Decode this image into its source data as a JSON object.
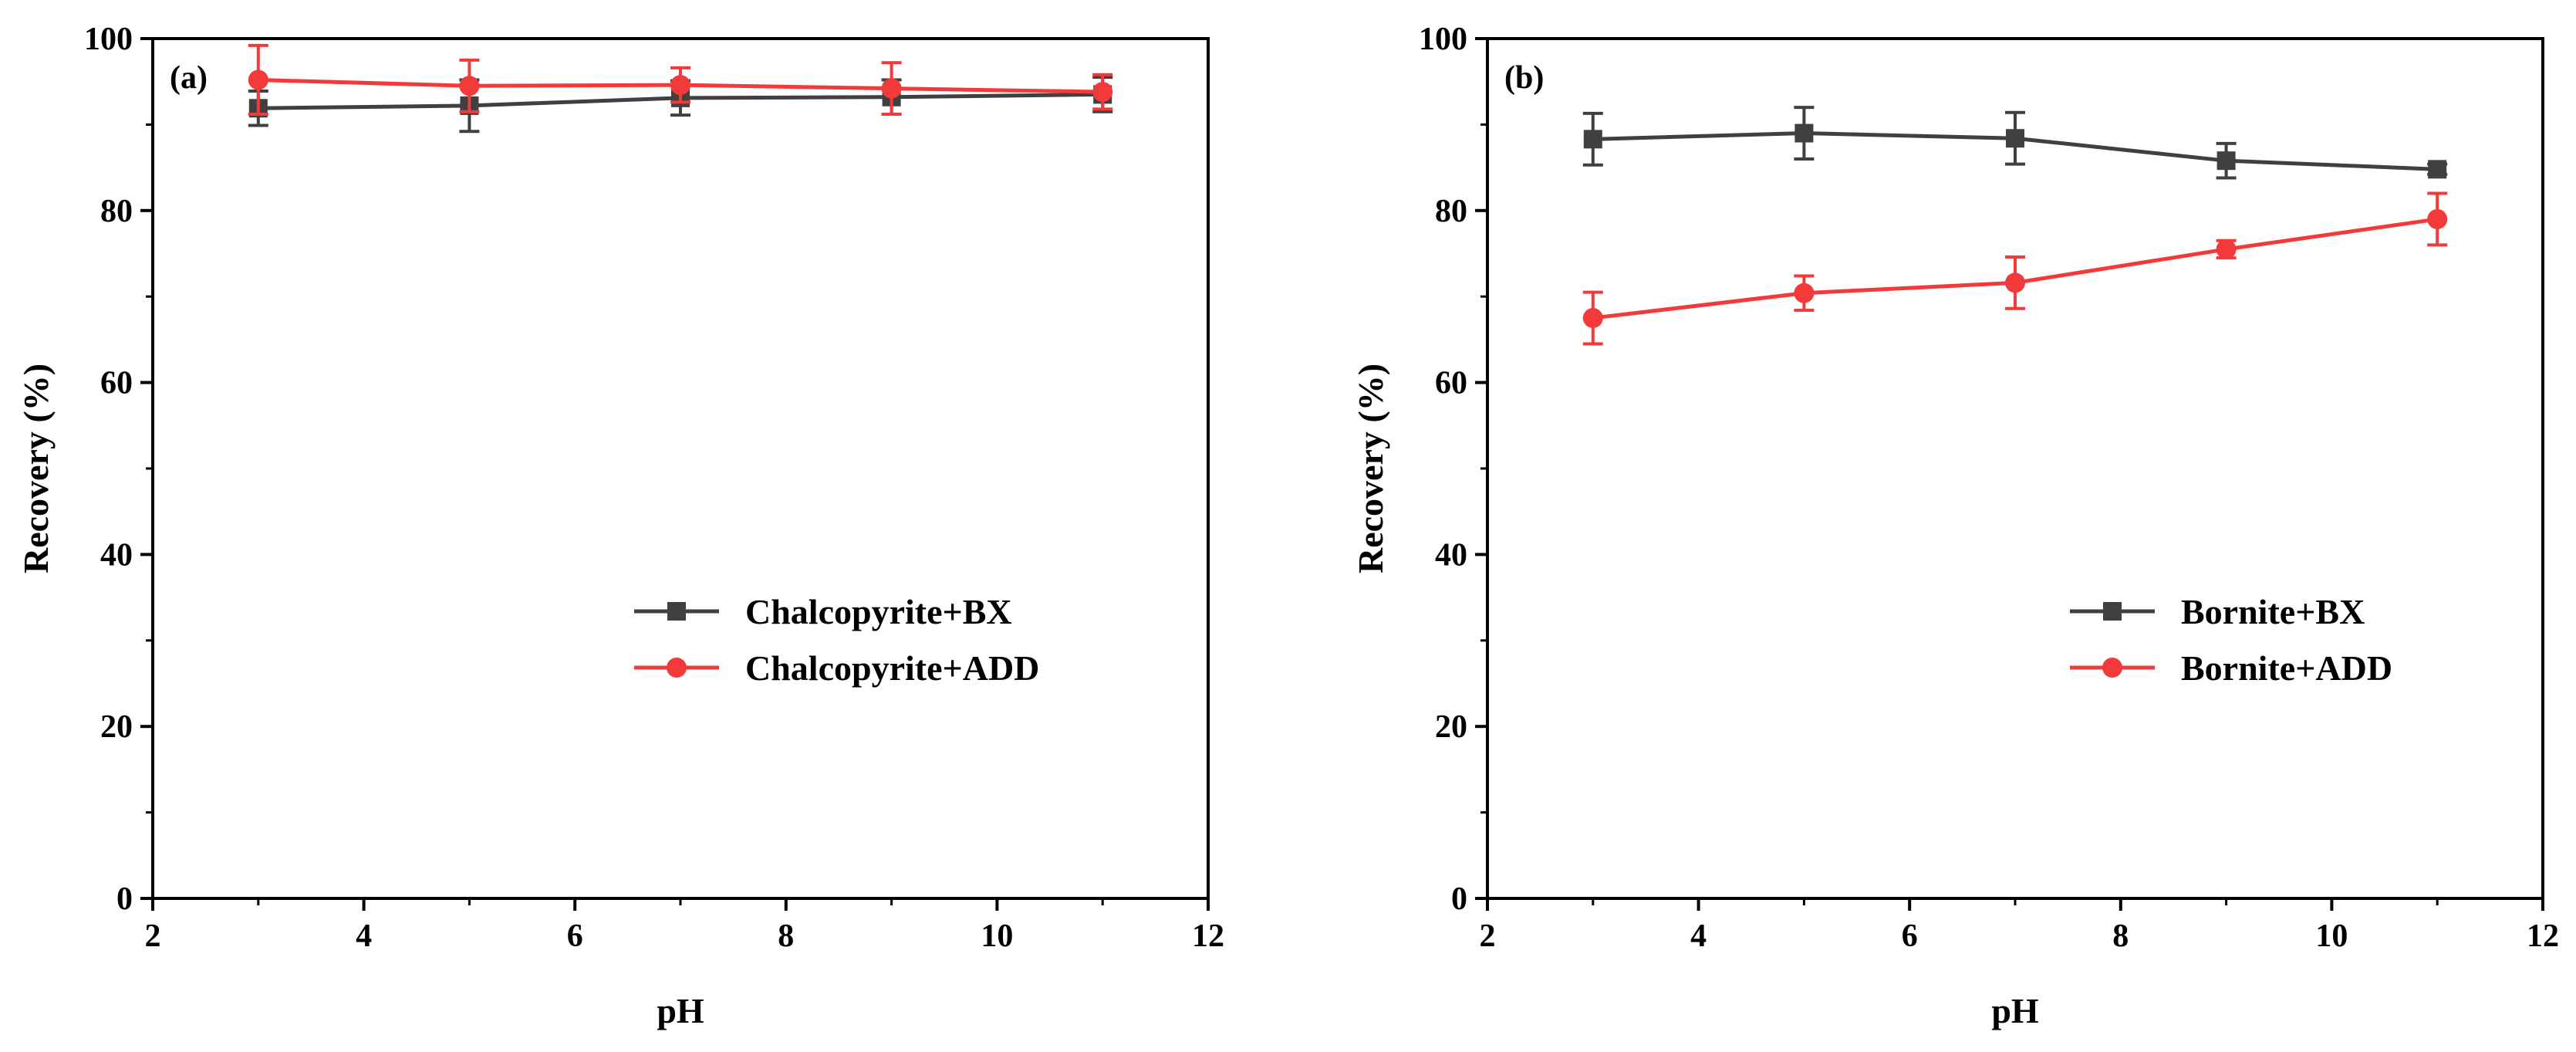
{
  "chart_data": [
    {
      "type": "line",
      "panel_label": "(a)",
      "title": "",
      "xlabel": "pH",
      "ylabel": "Recovery (%)",
      "xlim": [
        2,
        12
      ],
      "ylim": [
        0,
        100
      ],
      "xticks": [
        2,
        4,
        6,
        8,
        10,
        12
      ],
      "yticks": [
        0,
        20,
        40,
        60,
        80,
        100
      ],
      "grid": false,
      "legend_position": "center-right",
      "x": [
        3,
        5,
        7,
        9,
        11
      ],
      "series": [
        {
          "name": "Chalcopyrite+BX",
          "marker": "square",
          "color": "#404040",
          "values": [
            91.9,
            92.2,
            93.1,
            93.2,
            93.5
          ],
          "errors": [
            2.0,
            3.0,
            2.0,
            2.0,
            2.0
          ]
        },
        {
          "name": "Chalcopyrite+ADD",
          "marker": "circle",
          "color": "#f23a3a",
          "values": [
            95.2,
            94.5,
            94.6,
            94.2,
            93.8
          ],
          "errors": [
            4.0,
            3.0,
            2.0,
            3.0,
            2.0
          ]
        }
      ]
    },
    {
      "type": "line",
      "panel_label": "(b)",
      "title": "",
      "xlabel": "pH",
      "ylabel": "Recovery (%)",
      "xlim": [
        2,
        12
      ],
      "ylim": [
        0,
        100
      ],
      "xticks": [
        2,
        4,
        6,
        8,
        10,
        12
      ],
      "yticks": [
        0,
        20,
        40,
        60,
        80,
        100
      ],
      "grid": false,
      "legend_position": "center-right",
      "x": [
        3,
        5,
        7,
        9,
        11
      ],
      "series": [
        {
          "name": "Bornite+BX",
          "marker": "square",
          "color": "#404040",
          "values": [
            88.3,
            89.0,
            88.4,
            85.8,
            84.8
          ],
          "errors": [
            3.0,
            3.0,
            3.0,
            2.0,
            0.6
          ]
        },
        {
          "name": "Bornite+ADD",
          "marker": "circle",
          "color": "#f23a3a",
          "values": [
            67.5,
            70.4,
            71.6,
            75.5,
            79.0
          ],
          "errors": [
            3.0,
            2.0,
            3.0,
            1.0,
            3.0
          ]
        }
      ]
    }
  ]
}
